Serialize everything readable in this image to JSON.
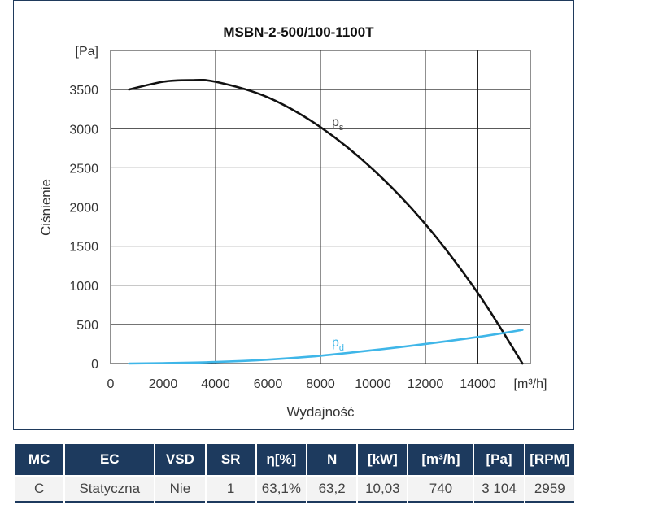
{
  "chart_data": {
    "type": "line",
    "title": "MSBN-2-500/100-1100T",
    "xlabel": "Wydajność",
    "ylabel": "Ciśnienie",
    "x_unit": "[m³/h]",
    "y_unit": "[Pa]",
    "xlim": [
      0,
      16000
    ],
    "ylim": [
      0,
      4000
    ],
    "x_ticks": [
      "0",
      "2000",
      "4000",
      "6000",
      "8000",
      "10000",
      "12000",
      "14000"
    ],
    "y_ticks": [
      "0",
      "500",
      "1000",
      "1500",
      "2000",
      "2500",
      "3000",
      "3500"
    ],
    "grid": true,
    "series": [
      {
        "name": "ps",
        "color": "#111111",
        "x": [
          700,
          2000,
          3000,
          4000,
          6000,
          8000,
          10000,
          12000,
          14000,
          15700
        ],
        "y": [
          3500,
          3600,
          3620,
          3600,
          3400,
          3020,
          2480,
          1780,
          900,
          0
        ]
      },
      {
        "name": "pd",
        "color": "#3fb6e8",
        "x": [
          700,
          2000,
          4000,
          6000,
          8000,
          10000,
          12000,
          14000,
          15700
        ],
        "y": [
          0,
          5,
          20,
          50,
          100,
          170,
          250,
          340,
          430
        ]
      }
    ]
  },
  "table": {
    "headers": [
      "MC",
      "EC",
      "VSD",
      "SR",
      "η[%]",
      "N",
      "[kW]",
      "[m³/h]",
      "[Pa]",
      "[RPM]"
    ],
    "row": [
      "C",
      "Statyczna",
      "Nie",
      "1",
      "63,1%",
      "63,2",
      "10,03",
      "740",
      "3 104",
      "2959"
    ]
  }
}
